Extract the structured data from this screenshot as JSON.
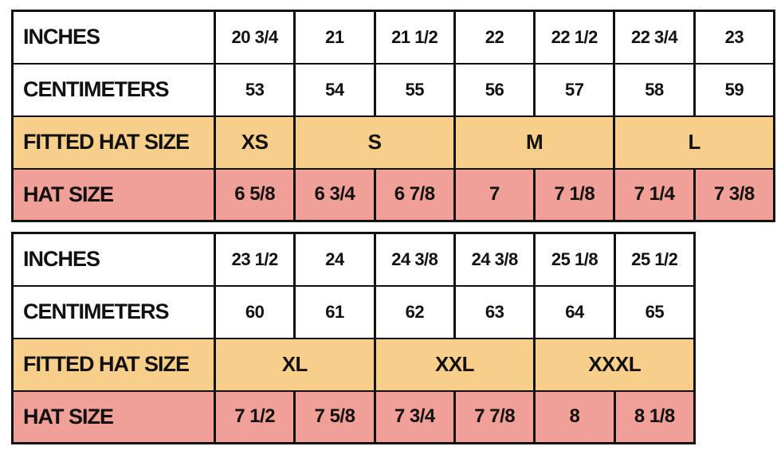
{
  "colors": {
    "fitted_row": "#f8cf8a",
    "hat_row": "#f0a096",
    "border": "#111111"
  },
  "labels": {
    "inches": "INCHES",
    "centimeters": "CENTIMETERS",
    "fitted": "FITTED HAT SIZE",
    "hat": "HAT SIZE"
  },
  "table1": {
    "inches": [
      "20 3/4",
      "21",
      "21 1/2",
      "22",
      "22 1/2",
      "22 3/4",
      "23"
    ],
    "centimeters": [
      "53",
      "54",
      "55",
      "56",
      "57",
      "58",
      "59"
    ],
    "fitted": [
      "XS",
      "S",
      "M",
      "L"
    ],
    "hat": [
      "6 5/8",
      "6 3/4",
      "6 7/8",
      "7",
      "7 1/8",
      "7 1/4",
      "7 3/8"
    ]
  },
  "table2": {
    "inches": [
      "23 1/2",
      "24",
      "24 3/8",
      "24 3/8",
      "25 1/8",
      "25 1/2"
    ],
    "centimeters": [
      "60",
      "61",
      "62",
      "63",
      "64",
      "65"
    ],
    "fitted": [
      "XL",
      "XXL",
      "XXXL"
    ],
    "hat": [
      "7 1/2",
      "7 5/8",
      "7 3/4",
      "7 7/8",
      "8",
      "8 1/8"
    ]
  }
}
